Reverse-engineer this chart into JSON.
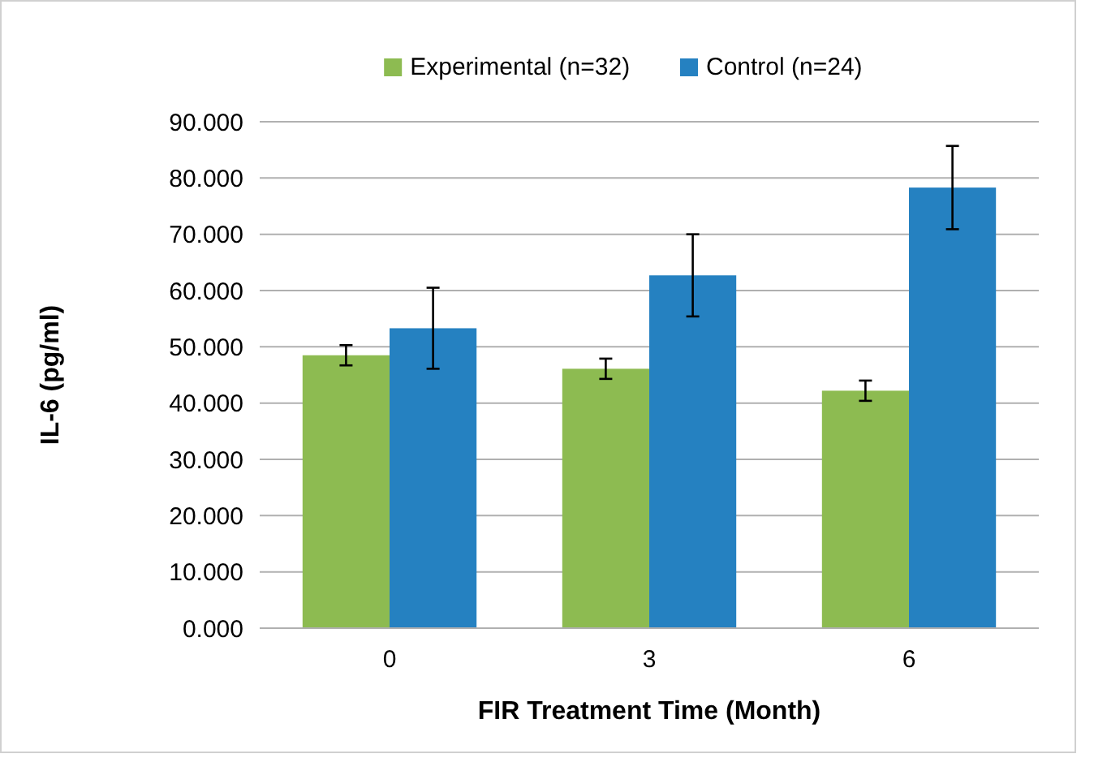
{
  "chart_data": {
    "type": "bar",
    "xlabel": "FIR Treatment Time  (Month)",
    "ylabel": "IL-6 (pg/ml)",
    "categories": [
      "0",
      "3",
      "6"
    ],
    "series": [
      {
        "name": "Experimental (n=32)",
        "color": "#8dbb51",
        "values": [
          48.5,
          46.1,
          42.2
        ],
        "errors": [
          1.8,
          1.8,
          1.8
        ]
      },
      {
        "name": "Control (n=24)",
        "color": "#2581c1",
        "values": [
          53.3,
          62.7,
          78.3
        ],
        "errors": [
          7.2,
          7.3,
          7.4
        ]
      }
    ],
    "ylim": [
      0,
      90
    ],
    "yticks": [
      {
        "value": 0,
        "label": "0.000"
      },
      {
        "value": 10,
        "label": "10.000"
      },
      {
        "value": 20,
        "label": "20.000"
      },
      {
        "value": 30,
        "label": "30.000"
      },
      {
        "value": 40,
        "label": "40.000"
      },
      {
        "value": 50,
        "label": "50.000"
      },
      {
        "value": 60,
        "label": "60.000"
      },
      {
        "value": 70,
        "label": "70.000"
      },
      {
        "value": 80,
        "label": "80.000"
      },
      {
        "value": 90,
        "label": "90.000"
      }
    ],
    "grid": "y",
    "legend": "top"
  }
}
